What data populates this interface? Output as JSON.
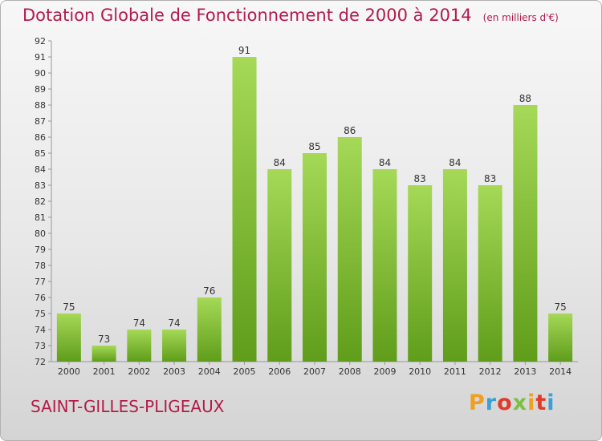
{
  "header": {
    "title": "Dotation Globale de Fonctionnement de 2000 à 2014",
    "unit": "(en milliers d'€)"
  },
  "footer": {
    "commune": "SAINT-GILLES-PLIGEAUX",
    "logo_text": "Proxiti",
    "logo_colors": [
      "#f0a020",
      "#3aa0d8",
      "#e03a2a",
      "#7bc043",
      "#f0a020",
      "#e03a2a",
      "#3aa0d8"
    ]
  },
  "colors": {
    "bar_top": "#a5d957",
    "bar_bottom": "#5f9d1a",
    "text_accent": "#b31b4a"
  },
  "chart_data": {
    "type": "bar",
    "title": "Dotation Globale de Fonctionnement de 2000 à 2014",
    "subtitle": "(en milliers d'€)",
    "categories": [
      "2000",
      "2001",
      "2002",
      "2003",
      "2004",
      "2005",
      "2006",
      "2007",
      "2008",
      "2009",
      "2010",
      "2011",
      "2012",
      "2013",
      "2014"
    ],
    "values": [
      75,
      73,
      74,
      74,
      76,
      91,
      84,
      85,
      86,
      84,
      83,
      84,
      83,
      88,
      75
    ],
    "ylim": [
      72,
      92
    ],
    "yticks": [
      72,
      73,
      74,
      75,
      76,
      77,
      78,
      79,
      80,
      81,
      82,
      83,
      84,
      85,
      86,
      87,
      88,
      89,
      90,
      91,
      92
    ],
    "xlabel": "",
    "ylabel": "",
    "grid": false,
    "data_labels": true
  }
}
